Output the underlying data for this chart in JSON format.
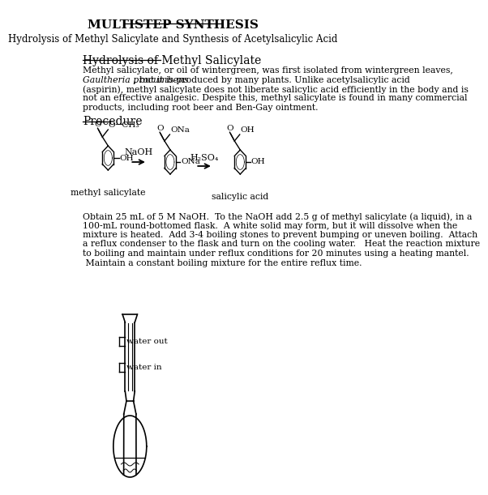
{
  "title": "MULTISTEP SYNTHESIS",
  "subtitle": "Hydrolysis of Methyl Salicylate and Synthesis of Acetylsalicylic Acid",
  "section1": "Hydrolysis of Methyl Salicylate",
  "procedure_label": "Procedure",
  "label_methyl": "methyl salicylate",
  "label_salicylic": "salicylic acid",
  "reagent1": "NaOH",
  "reagent2": "H₂SO₄",
  "water_out": "water out",
  "water_in": "water in",
  "bg_color": "#ffffff",
  "text_color": "#000000",
  "para1_line1": "Methyl salicylate, or oil of wintergreen, was first isolated from wintergreen leaves,",
  "para1_line2_italic": "Gaultheria procumbens",
  "para1_line2_rest": ", but it is produced by many plants. Unlike acetylsalicylic acid",
  "para1_line3": "(aspirin), methyl salicylate does not liberate salicylic acid efficiently in the body and is",
  "para1_line4": "not an effective analgesic. Despite this, methyl salicylate is found in many commercial",
  "para1_line5": "products, including root beer and Ben-Gay ointment.",
  "para2_line1": "Obtain 25 mL of 5 M NaOH.  To the NaOH add 2.5 g of methyl salicylate (a liquid), in a",
  "para2_line2": "100-mL round-bottomed flask.  A white solid may form, but it will dissolve when the",
  "para2_line3": "mixture is heated.  Add 3-4 boiling stones to prevent bumping or uneven boiling.  Attach",
  "para2_line4": "a reflux condenser to the flask and turn on the cooling water.   Heat the reaction mixture",
  "para2_line5": "to boiling and maintain under reflux conditions for 20 minutes using a heating mantel.",
  "para2_line6": " Maintain a constant boiling mixture for the entire reflux time."
}
